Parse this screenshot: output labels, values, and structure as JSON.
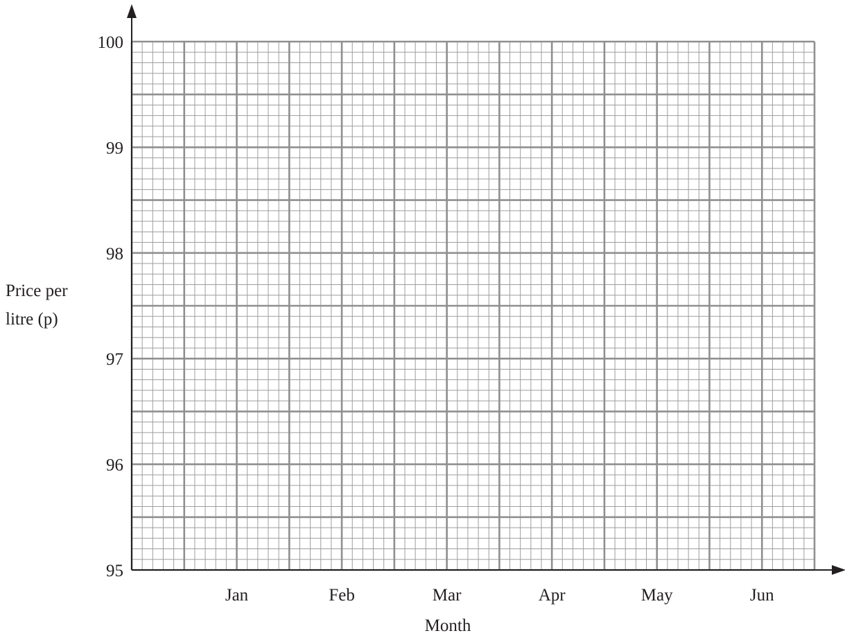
{
  "chart_data": {
    "type": "line",
    "title": "",
    "xlabel": "Month",
    "ylabel": [
      "Price per",
      "litre (p)"
    ],
    "categories": [
      "Jan",
      "Feb",
      "Mar",
      "Apr",
      "May",
      "Jun"
    ],
    "yticks": [
      "95",
      "96",
      "97",
      "98",
      "99",
      "100"
    ],
    "ylim": [
      95,
      100
    ],
    "grid": true,
    "series": []
  }
}
